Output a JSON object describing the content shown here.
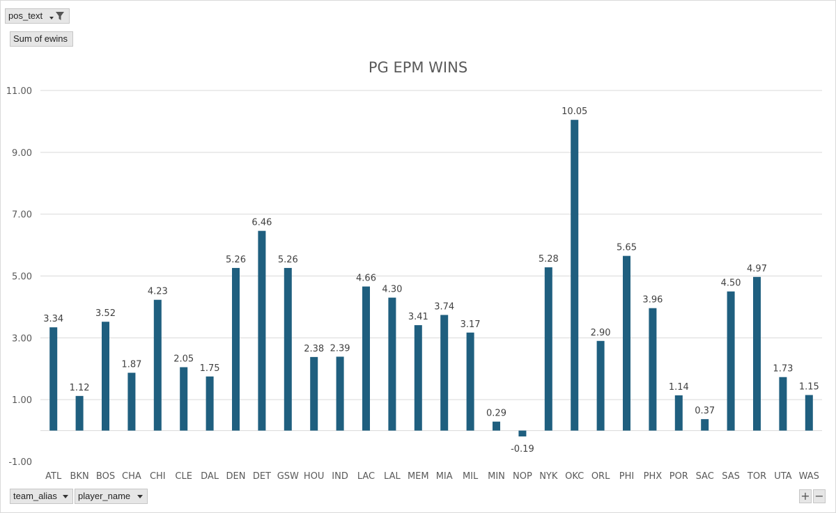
{
  "pivot": {
    "filter_field": "pos_text",
    "values_field": "Sum of ewins",
    "axis_fields": [
      "team_alias",
      "player_name"
    ],
    "zoom_in": "+",
    "zoom_out": "−"
  },
  "colors": {
    "bar": "#1f5f7f",
    "grid": "#d9d9d9",
    "text": "#595959"
  },
  "chart_data": {
    "type": "bar",
    "title": "PG EPM WINS",
    "xlabel": "",
    "ylabel": "",
    "ylim": [
      -1,
      11
    ],
    "yticks": [
      "11.00",
      "9.00",
      "7.00",
      "5.00",
      "3.00",
      "1.00",
      "-1.00"
    ],
    "ytick_values": [
      11,
      9,
      7,
      5,
      3,
      1,
      -1
    ],
    "grid": true,
    "legend": "none",
    "categories": [
      "ATL",
      "BKN",
      "BOS",
      "CHA",
      "CHI",
      "CLE",
      "DAL",
      "DEN",
      "DET",
      "GSW",
      "HOU",
      "IND",
      "LAC",
      "LAL",
      "MEM",
      "MIA",
      "MIL",
      "MIN",
      "NOP",
      "NYK",
      "OKC",
      "ORL",
      "PHI",
      "PHX",
      "POR",
      "SAC",
      "SAS",
      "TOR",
      "UTA",
      "WAS"
    ],
    "values": [
      3.34,
      1.12,
      3.52,
      1.87,
      4.23,
      2.05,
      1.75,
      5.26,
      6.46,
      5.26,
      2.38,
      2.39,
      4.66,
      4.3,
      3.41,
      3.74,
      3.17,
      0.29,
      -0.19,
      5.28,
      10.05,
      2.9,
      5.65,
      3.96,
      1.14,
      0.37,
      4.5,
      4.97,
      1.73,
      1.15
    ],
    "data_labels": [
      "3.34",
      "1.12",
      "3.52",
      "1.87",
      "4.23",
      "2.05",
      "1.75",
      "5.26",
      "6.46",
      "5.26",
      "2.38",
      "2.39",
      "4.66",
      "4.30",
      "3.41",
      "3.74",
      "3.17",
      "0.29",
      "-0.19",
      "5.28",
      "10.05",
      "2.90",
      "5.65",
      "3.96",
      "1.14",
      "0.37",
      "4.50",
      "4.97",
      "1.73",
      "1.15"
    ]
  }
}
